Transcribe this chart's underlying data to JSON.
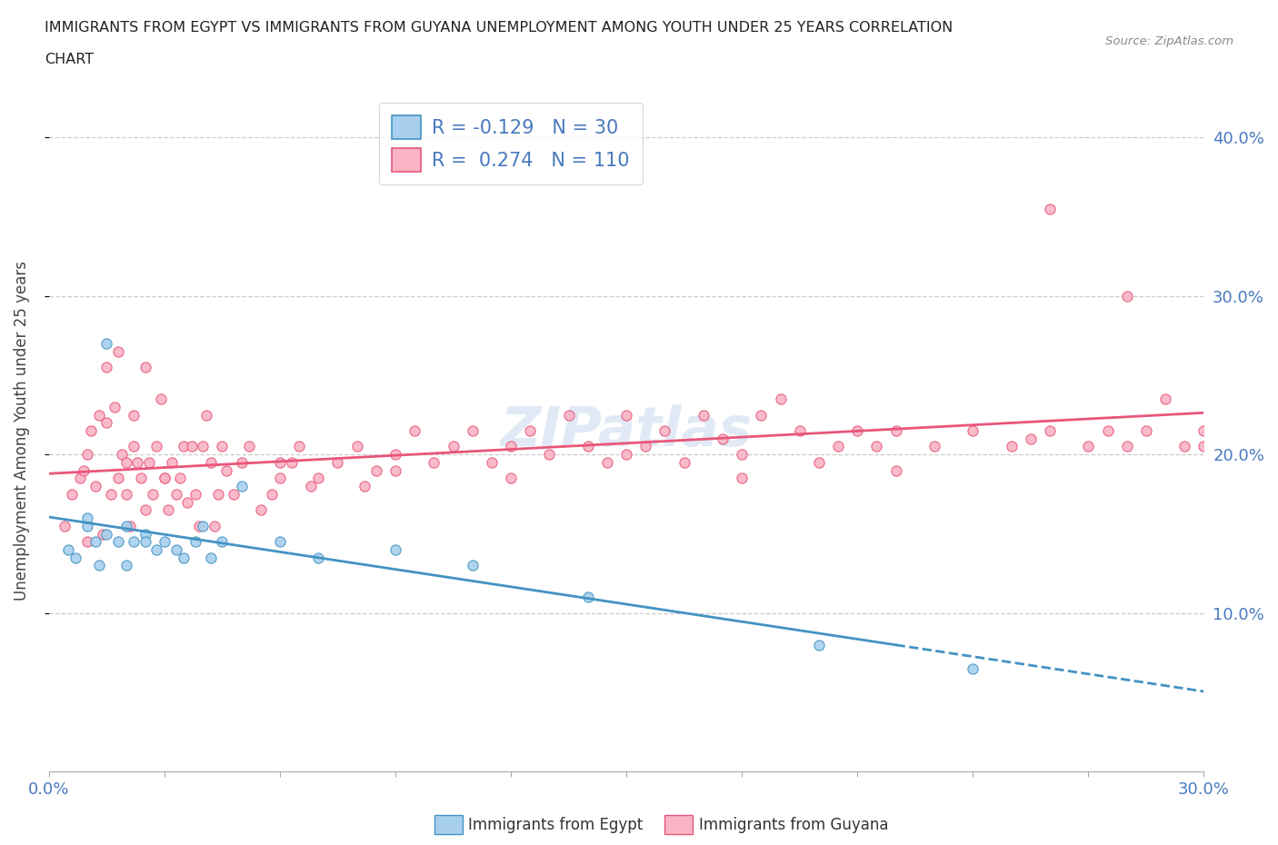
{
  "title_line1": "IMMIGRANTS FROM EGYPT VS IMMIGRANTS FROM GUYANA UNEMPLOYMENT AMONG YOUTH UNDER 25 YEARS CORRELATION",
  "title_line2": "CHART",
  "source_text": "Source: ZipAtlas.com",
  "ylabel": "Unemployment Among Youth under 25 years",
  "legend_egypt_r": "-0.129",
  "legend_egypt_n": "30",
  "legend_guyana_r": "0.274",
  "legend_guyana_n": "110",
  "egypt_color": "#a8d0ee",
  "guyana_color": "#f9b4c5",
  "egypt_line_color": "#4393c3",
  "guyana_line_color": "#e8567a",
  "watermark": "ZIPatlas",
  "xlim": [
    0.0,
    0.3
  ],
  "ylim": [
    0.0,
    0.43
  ],
  "egypt_scatter_x": [
    0.005,
    0.007,
    0.01,
    0.01,
    0.012,
    0.013,
    0.015,
    0.015,
    0.018,
    0.02,
    0.02,
    0.022,
    0.025,
    0.025,
    0.028,
    0.03,
    0.033,
    0.035,
    0.038,
    0.04,
    0.042,
    0.045,
    0.05,
    0.06,
    0.07,
    0.09,
    0.11,
    0.14,
    0.2,
    0.24
  ],
  "egypt_scatter_y": [
    0.14,
    0.135,
    0.155,
    0.16,
    0.145,
    0.13,
    0.15,
    0.27,
    0.145,
    0.155,
    0.13,
    0.145,
    0.15,
    0.145,
    0.14,
    0.145,
    0.14,
    0.135,
    0.145,
    0.155,
    0.135,
    0.145,
    0.18,
    0.145,
    0.135,
    0.14,
    0.13,
    0.11,
    0.08,
    0.065
  ],
  "guyana_scatter_x": [
    0.004,
    0.006,
    0.008,
    0.009,
    0.01,
    0.011,
    0.012,
    0.013,
    0.014,
    0.015,
    0.015,
    0.016,
    0.017,
    0.018,
    0.018,
    0.019,
    0.02,
    0.02,
    0.021,
    0.022,
    0.022,
    0.023,
    0.024,
    0.025,
    0.025,
    0.026,
    0.027,
    0.028,
    0.029,
    0.03,
    0.031,
    0.032,
    0.033,
    0.034,
    0.035,
    0.036,
    0.037,
    0.038,
    0.039,
    0.04,
    0.041,
    0.042,
    0.043,
    0.044,
    0.045,
    0.046,
    0.048,
    0.05,
    0.052,
    0.055,
    0.058,
    0.06,
    0.063,
    0.065,
    0.068,
    0.07,
    0.075,
    0.08,
    0.082,
    0.085,
    0.09,
    0.095,
    0.1,
    0.105,
    0.11,
    0.115,
    0.12,
    0.125,
    0.13,
    0.135,
    0.14,
    0.145,
    0.15,
    0.155,
    0.16,
    0.165,
    0.17,
    0.175,
    0.18,
    0.185,
    0.19,
    0.195,
    0.2,
    0.205,
    0.21,
    0.215,
    0.22,
    0.23,
    0.24,
    0.25,
    0.255,
    0.26,
    0.27,
    0.275,
    0.28,
    0.285,
    0.29,
    0.295,
    0.3,
    0.3,
    0.28,
    0.26,
    0.22,
    0.18,
    0.15,
    0.12,
    0.09,
    0.06,
    0.03,
    0.01
  ],
  "guyana_scatter_y": [
    0.155,
    0.175,
    0.185,
    0.19,
    0.2,
    0.215,
    0.18,
    0.225,
    0.15,
    0.22,
    0.255,
    0.175,
    0.23,
    0.185,
    0.265,
    0.2,
    0.175,
    0.195,
    0.155,
    0.205,
    0.225,
    0.195,
    0.185,
    0.165,
    0.255,
    0.195,
    0.175,
    0.205,
    0.235,
    0.185,
    0.165,
    0.195,
    0.175,
    0.185,
    0.205,
    0.17,
    0.205,
    0.175,
    0.155,
    0.205,
    0.225,
    0.195,
    0.155,
    0.175,
    0.205,
    0.19,
    0.175,
    0.195,
    0.205,
    0.165,
    0.175,
    0.185,
    0.195,
    0.205,
    0.18,
    0.185,
    0.195,
    0.205,
    0.18,
    0.19,
    0.2,
    0.215,
    0.195,
    0.205,
    0.215,
    0.195,
    0.205,
    0.215,
    0.2,
    0.225,
    0.205,
    0.195,
    0.225,
    0.205,
    0.215,
    0.195,
    0.225,
    0.21,
    0.2,
    0.225,
    0.235,
    0.215,
    0.195,
    0.205,
    0.215,
    0.205,
    0.215,
    0.205,
    0.215,
    0.205,
    0.21,
    0.215,
    0.205,
    0.215,
    0.205,
    0.215,
    0.235,
    0.205,
    0.215,
    0.205,
    0.3,
    0.355,
    0.19,
    0.185,
    0.2,
    0.185,
    0.19,
    0.195,
    0.185,
    0.145
  ]
}
